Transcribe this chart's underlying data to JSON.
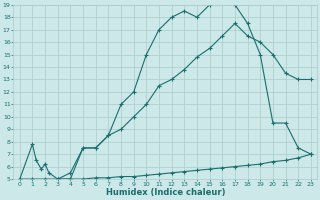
{
  "xlabel": "Humidex (Indice chaleur)",
  "bg_color": "#cce8e8",
  "grid_color": "#aacccc",
  "line_color": "#1a6e6e",
  "xlim": [
    -0.5,
    23.5
  ],
  "ylim": [
    5,
    19
  ],
  "xticks": [
    0,
    1,
    2,
    3,
    4,
    5,
    6,
    7,
    8,
    9,
    10,
    11,
    12,
    13,
    14,
    15,
    16,
    17,
    18,
    19,
    20,
    21,
    22,
    23
  ],
  "yticks": [
    5,
    6,
    7,
    8,
    9,
    10,
    11,
    12,
    13,
    14,
    15,
    16,
    17,
    18,
    19
  ],
  "line1_x": [
    0,
    1,
    1.3,
    1.7,
    2,
    2.3,
    3,
    4,
    5,
    6,
    7,
    8,
    9,
    10,
    11,
    12,
    13,
    14,
    15,
    16,
    17,
    18,
    19,
    20,
    21,
    22,
    23
  ],
  "line1_y": [
    5,
    7.8,
    6.5,
    5.8,
    6.2,
    5.5,
    5,
    5,
    7.5,
    7.5,
    8.5,
    11,
    12,
    15,
    17,
    18,
    18.5,
    18,
    19,
    19.2,
    19,
    17.5,
    15,
    9.5,
    9.5,
    7.5,
    7
  ],
  "line2_x": [
    3,
    4,
    5,
    6,
    7,
    8,
    9,
    10,
    11,
    12,
    13,
    14,
    15,
    16,
    17,
    18,
    19,
    20,
    21,
    22,
    23
  ],
  "line2_y": [
    5,
    5.5,
    7.5,
    7.5,
    8.5,
    9,
    10,
    11,
    12.5,
    13,
    13.8,
    14.8,
    15.5,
    16.5,
    17.5,
    16.5,
    16,
    15,
    13.5,
    13,
    13
  ],
  "line3_x": [
    0,
    1,
    2,
    3,
    4,
    5,
    6,
    7,
    8,
    9,
    10,
    11,
    12,
    13,
    14,
    15,
    16,
    17,
    18,
    19,
    20,
    21,
    22,
    23
  ],
  "line3_y": [
    5,
    5,
    5,
    5,
    5,
    5,
    5.1,
    5.1,
    5.2,
    5.2,
    5.3,
    5.4,
    5.5,
    5.6,
    5.7,
    5.8,
    5.9,
    6.0,
    6.1,
    6.2,
    6.4,
    6.5,
    6.7,
    7.0
  ]
}
